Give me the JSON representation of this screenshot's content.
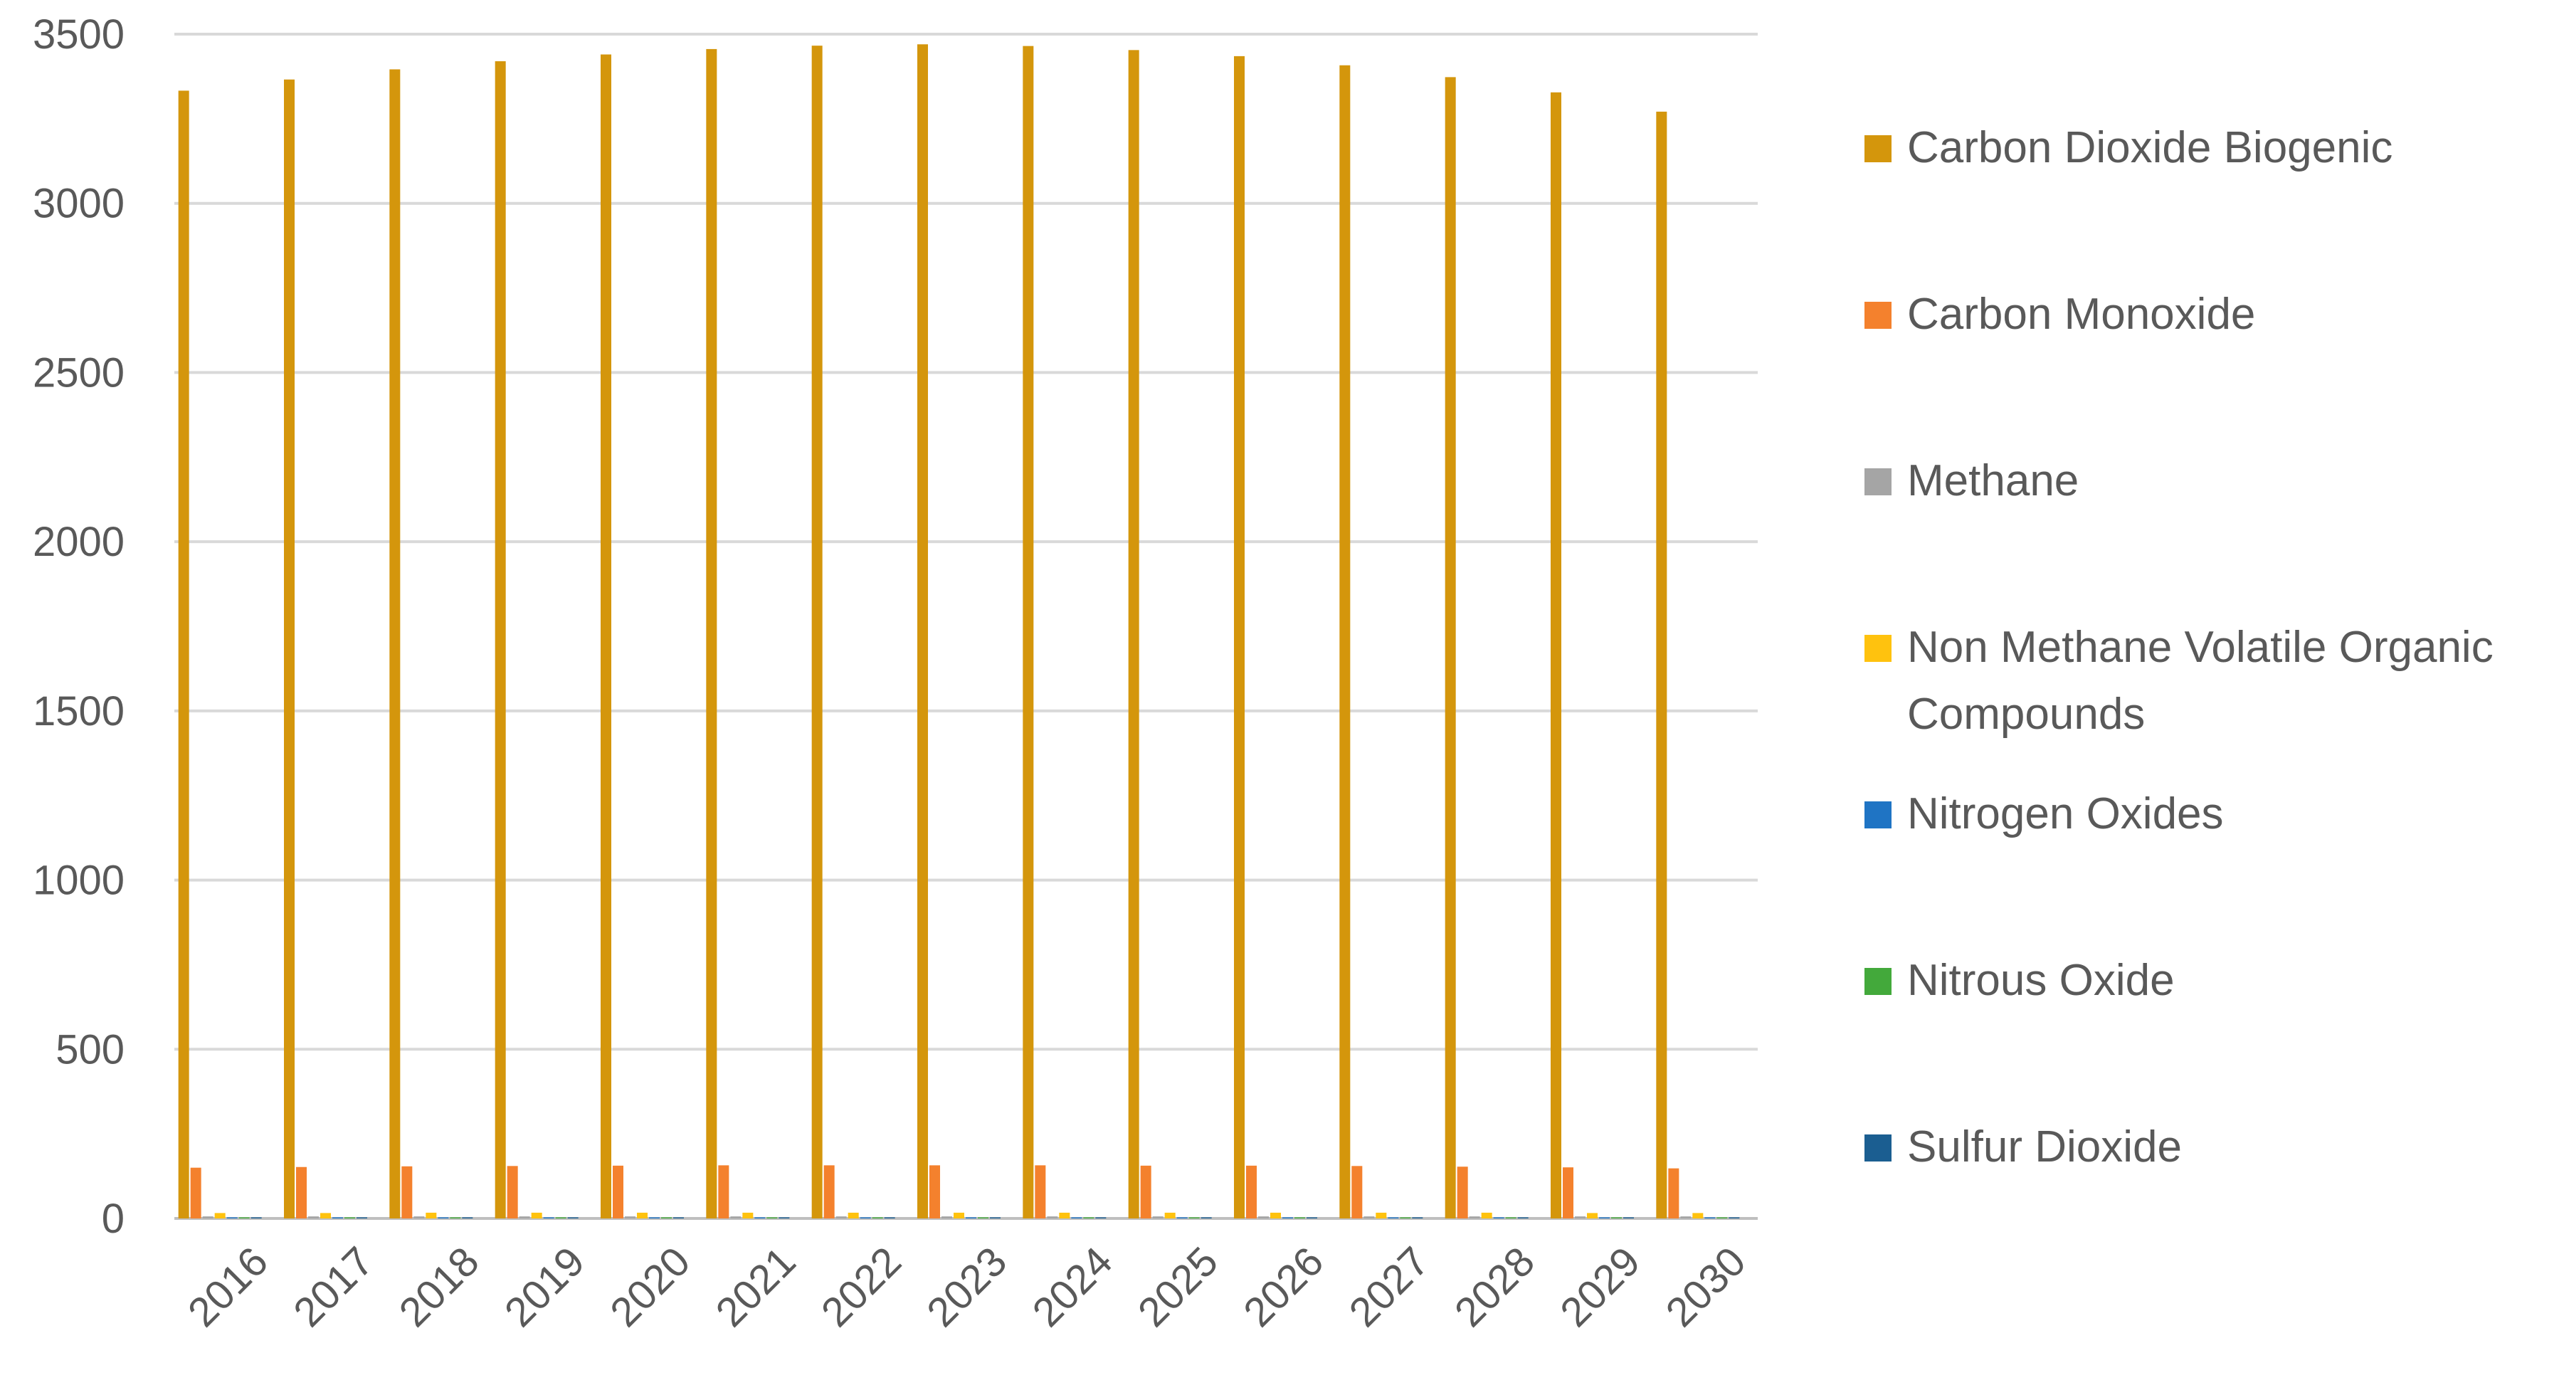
{
  "chart_data": {
    "type": "bar",
    "categories": [
      "2016",
      "2017",
      "2018",
      "2019",
      "2020",
      "2021",
      "2022",
      "2023",
      "2024",
      "2025",
      "2026",
      "2027",
      "2028",
      "2029",
      "2030"
    ],
    "series": [
      {
        "name": "Carbon Dioxide Biogenic",
        "color": "#d4960c",
        "values": [
          3333,
          3366,
          3396,
          3420,
          3440,
          3456,
          3466,
          3470,
          3465,
          3453,
          3435,
          3408,
          3373,
          3328,
          3271
        ]
      },
      {
        "name": "Carbon Monoxide",
        "color": "#f4812d",
        "values": [
          150,
          152,
          154,
          155,
          156,
          157,
          157,
          157,
          157,
          156,
          156,
          155,
          153,
          151,
          148
        ]
      },
      {
        "name": "Methane",
        "color": "#a5a5a5",
        "values": [
          6,
          6,
          6,
          6,
          6,
          6,
          6,
          6,
          6,
          6,
          6,
          6,
          6,
          6,
          6
        ]
      },
      {
        "name": "Non Methane Volatile Organic Compounds",
        "color": "#ffc20e",
        "values": [
          16,
          16,
          17,
          17,
          17,
          17,
          17,
          17,
          17,
          17,
          17,
          17,
          17,
          16,
          16
        ]
      },
      {
        "name": "Nitrogen Oxides",
        "color": "#1f74c4",
        "values": [
          1,
          1,
          1,
          1,
          1,
          1,
          1,
          1,
          1,
          1,
          1,
          1,
          1,
          1,
          1
        ]
      },
      {
        "name": "Nitrous Oxide",
        "color": "#43a93b",
        "values": [
          0.5,
          0.5,
          0.5,
          0.5,
          0.5,
          0.5,
          0.5,
          0.5,
          0.5,
          0.5,
          0.5,
          0.5,
          0.5,
          0.5,
          0.5
        ]
      },
      {
        "name": "Sulfur Dioxide",
        "color": "#1b5e91",
        "values": [
          0.5,
          0.5,
          0.5,
          0.5,
          0.5,
          0.5,
          0.5,
          0.5,
          0.5,
          0.5,
          0.5,
          0.5,
          0.5,
          0.5,
          0.5
        ]
      }
    ],
    "yticks": [
      "0",
      "500",
      "1000",
      "1500",
      "2000",
      "2500",
      "3000",
      "3500"
    ],
    "ylim": [
      0,
      3500
    ],
    "grid": true,
    "legend_position": "right",
    "title": "",
    "xlabel": "",
    "ylabel": ""
  }
}
